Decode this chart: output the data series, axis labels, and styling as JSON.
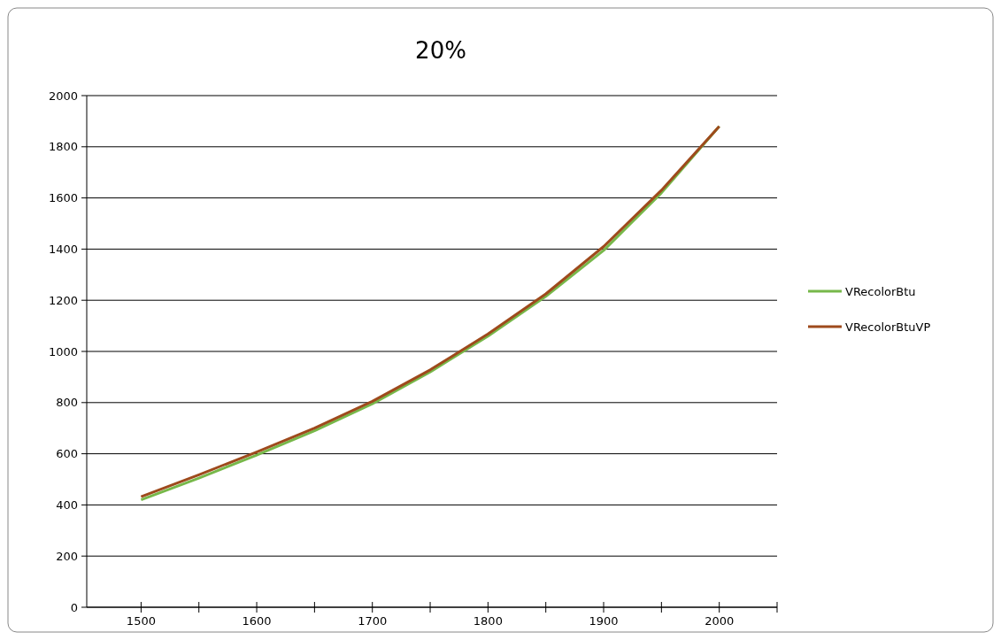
{
  "chart_data": {
    "type": "line",
    "title": "20%",
    "x": [
      1500,
      1550,
      1600,
      1650,
      1700,
      1750,
      1800,
      1850,
      1900,
      1950,
      2000
    ],
    "series": [
      {
        "name": "VRecolorBtu",
        "color": "#77b84a",
        "values": [
          420,
          505,
          595,
          690,
          795,
          920,
          1060,
          1215,
          1395,
          1620,
          1880
        ]
      },
      {
        "name": "VRecolorBtuVP",
        "color": "#9e4a1c",
        "values": [
          432,
          518,
          607,
          700,
          805,
          928,
          1068,
          1225,
          1410,
          1630,
          1880
        ]
      }
    ],
    "xlim": [
      1453,
      2050
    ],
    "xticks": [
      1500,
      {
        "value": 1550,
        "label": null
      },
      1600,
      {
        "value": 1650,
        "label": null
      },
      1700,
      {
        "value": 1750,
        "label": null
      },
      1800,
      {
        "value": 1850,
        "label": null
      },
      1900,
      {
        "value": 1950,
        "label": null
      },
      2000,
      {
        "value": 2050,
        "label": null
      }
    ],
    "ylim": [
      0,
      2000
    ],
    "yticks": [
      0,
      200,
      400,
      600,
      800,
      1000,
      1200,
      1400,
      1600,
      1800,
      2000
    ],
    "grid": "y",
    "legend": "right",
    "marker": "none",
    "line_style": "solid"
  }
}
